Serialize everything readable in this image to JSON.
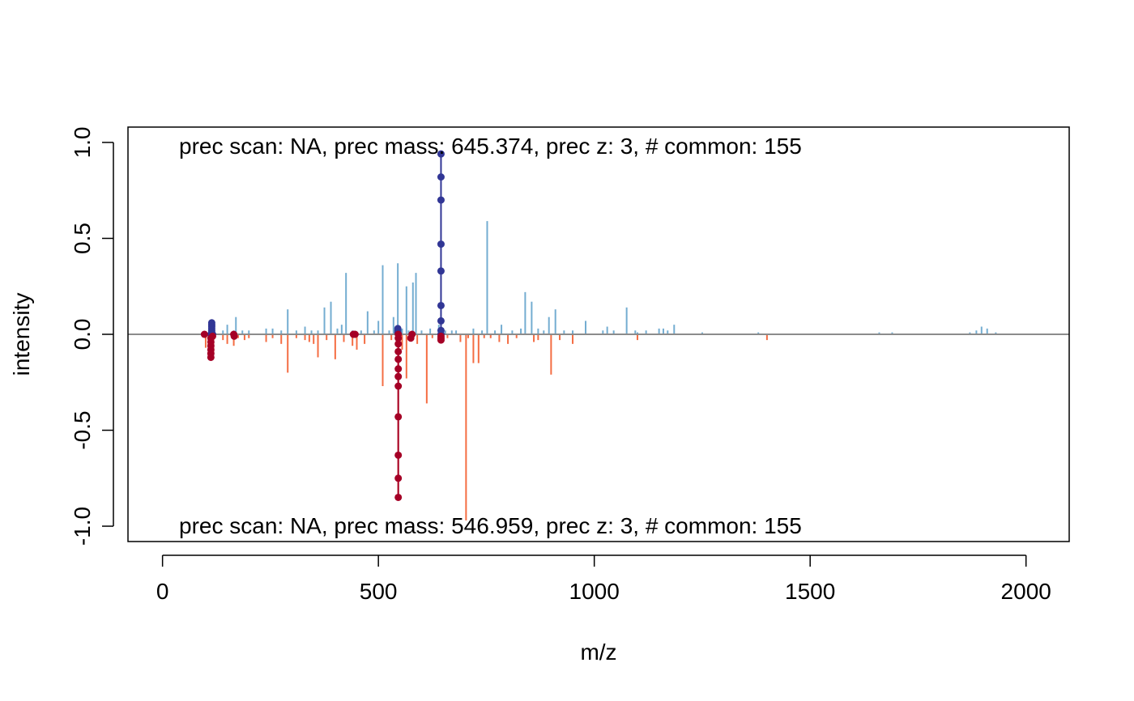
{
  "chart_data": {
    "type": "spectrum-mirror",
    "xlabel": "m/z",
    "ylabel": "intensity",
    "xlim": [
      -80,
      2100
    ],
    "ylim": [
      -1.08,
      1.08
    ],
    "x_ticks": [
      0,
      500,
      1000,
      1500,
      2000
    ],
    "x_tick_labels": [
      "0",
      "500",
      "1000",
      "1500",
      "2000"
    ],
    "y_ticks": [
      1.0,
      0.5,
      0.0,
      -0.5,
      -1.0
    ],
    "y_tick_labels": [
      "1.0",
      "0.5",
      "0.0",
      "-0.5",
      "-1.0"
    ],
    "top_label": "prec scan: NA, prec mass: 645.374, prec z: 3, # common: 155",
    "bottom_label": "prec scan: NA, prec mass: 546.959, prec z: 3, # common: 155",
    "colors": {
      "top_peaks": "#74add1",
      "bottom_peaks": "#f46d43",
      "top_points": "#313695",
      "bottom_points": "#a50026",
      "baseline": "#8c8c8c",
      "axis": "#000000"
    },
    "top_spectrum": {
      "peaks": [
        [
          110,
          0.03
        ],
        [
          114,
          0.05
        ],
        [
          118,
          0.04
        ],
        [
          140,
          0.02
        ],
        [
          150,
          0.05
        ],
        [
          165,
          0.02
        ],
        [
          170,
          0.09
        ],
        [
          185,
          0.02
        ],
        [
          200,
          0.02
        ],
        [
          240,
          0.03
        ],
        [
          255,
          0.03
        ],
        [
          275,
          0.02
        ],
        [
          290,
          0.13
        ],
        [
          310,
          0.02
        ],
        [
          330,
          0.04
        ],
        [
          345,
          0.02
        ],
        [
          360,
          0.02
        ],
        [
          375,
          0.14
        ],
        [
          390,
          0.17
        ],
        [
          405,
          0.03
        ],
        [
          415,
          0.05
        ],
        [
          425,
          0.32
        ],
        [
          440,
          0.02
        ],
        [
          460,
          0.02
        ],
        [
          475,
          0.12
        ],
        [
          490,
          0.02
        ],
        [
          500,
          0.07
        ],
        [
          510,
          0.36
        ],
        [
          525,
          0.02
        ],
        [
          535,
          0.09
        ],
        [
          545,
          0.37
        ],
        [
          555,
          0.03
        ],
        [
          565,
          0.25
        ],
        [
          570,
          0.02
        ],
        [
          580,
          0.27
        ],
        [
          587,
          0.32
        ],
        [
          600,
          0.02
        ],
        [
          620,
          0.03
        ],
        [
          640,
          0.05
        ],
        [
          655,
          0.02
        ],
        [
          670,
          0.02
        ],
        [
          680,
          0.02
        ],
        [
          720,
          0.03
        ],
        [
          740,
          0.02
        ],
        [
          752,
          0.59
        ],
        [
          770,
          0.02
        ],
        [
          785,
          0.05
        ],
        [
          810,
          0.02
        ],
        [
          830,
          0.03
        ],
        [
          840,
          0.22
        ],
        [
          855,
          0.17
        ],
        [
          870,
          0.03
        ],
        [
          883,
          0.02
        ],
        [
          895,
          0.09
        ],
        [
          910,
          0.13
        ],
        [
          930,
          0.02
        ],
        [
          950,
          0.02
        ],
        [
          980,
          0.07
        ],
        [
          1020,
          0.02
        ],
        [
          1030,
          0.04
        ],
        [
          1045,
          0.02
        ],
        [
          1075,
          0.14
        ],
        [
          1095,
          0.02
        ],
        [
          1100,
          0.01
        ],
        [
          1120,
          0.02
        ],
        [
          1150,
          0.03
        ],
        [
          1160,
          0.03
        ],
        [
          1170,
          0.02
        ],
        [
          1185,
          0.05
        ],
        [
          1250,
          0.01
        ],
        [
          1380,
          0.01
        ],
        [
          1660,
          0.01
        ],
        [
          1690,
          0.01
        ],
        [
          1870,
          0.01
        ],
        [
          1885,
          0.02
        ],
        [
          1897,
          0.04
        ],
        [
          1910,
          0.03
        ],
        [
          1930,
          0.01
        ]
      ],
      "precursor_x": 645,
      "precursor_points": [
        0.94,
        0.82,
        0.7,
        0.47,
        0.33,
        0.15,
        0.07,
        0.02,
        0.0
      ],
      "cluster_points": [
        [
          114,
          0.06
        ],
        [
          114,
          0.05
        ],
        [
          114,
          0.04
        ],
        [
          114,
          0.03
        ],
        [
          114,
          0.02
        ],
        [
          114,
          0.01
        ],
        [
          112,
          0.0
        ],
        [
          116,
          0.0
        ],
        [
          545,
          0.03
        ],
        [
          545,
          0.02
        ],
        [
          545,
          0.01
        ]
      ]
    },
    "bottom_spectrum": {
      "peaks": [
        [
          100,
          0.07
        ],
        [
          110,
          0.05
        ],
        [
          114,
          0.12
        ],
        [
          118,
          0.1
        ],
        [
          140,
          0.03
        ],
        [
          150,
          0.05
        ],
        [
          165,
          0.06
        ],
        [
          175,
          0.02
        ],
        [
          190,
          0.03
        ],
        [
          200,
          0.02
        ],
        [
          240,
          0.04
        ],
        [
          255,
          0.02
        ],
        [
          275,
          0.05
        ],
        [
          290,
          0.2
        ],
        [
          310,
          0.02
        ],
        [
          330,
          0.03
        ],
        [
          340,
          0.04
        ],
        [
          350,
          0.05
        ],
        [
          360,
          0.12
        ],
        [
          380,
          0.03
        ],
        [
          400,
          0.13
        ],
        [
          420,
          0.04
        ],
        [
          440,
          0.06
        ],
        [
          450,
          0.08
        ],
        [
          468,
          0.05
        ],
        [
          510,
          0.27
        ],
        [
          530,
          0.03
        ],
        [
          546,
          0.85
        ],
        [
          555,
          0.08
        ],
        [
          565,
          0.23
        ],
        [
          575,
          0.02
        ],
        [
          590,
          0.05
        ],
        [
          612,
          0.36
        ],
        [
          625,
          0.02
        ],
        [
          650,
          0.02
        ],
        [
          660,
          0.02
        ],
        [
          690,
          0.04
        ],
        [
          703,
          0.97
        ],
        [
          708,
          0.02
        ],
        [
          720,
          0.15
        ],
        [
          732,
          0.15
        ],
        [
          745,
          0.02
        ],
        [
          760,
          0.02
        ],
        [
          780,
          0.04
        ],
        [
          800,
          0.05
        ],
        [
          820,
          0.02
        ],
        [
          860,
          0.04
        ],
        [
          870,
          0.03
        ],
        [
          900,
          0.21
        ],
        [
          920,
          0.03
        ],
        [
          950,
          0.05
        ],
        [
          1100,
          0.03
        ],
        [
          1400,
          0.03
        ]
      ],
      "precursor_x": 546,
      "precursor_points": [
        -0.85,
        -0.75,
        -0.63,
        -0.43,
        -0.27,
        -0.22,
        -0.18,
        -0.13,
        -0.09,
        -0.05,
        -0.02,
        0.0
      ],
      "cluster_points": [
        [
          97,
          0.0
        ],
        [
          112,
          -0.12
        ],
        [
          112,
          -0.1
        ],
        [
          112,
          -0.08
        ],
        [
          112,
          -0.06
        ],
        [
          112,
          -0.04
        ],
        [
          112,
          -0.02
        ],
        [
          116,
          -0.01
        ],
        [
          165,
          0.0
        ],
        [
          166,
          -0.01
        ],
        [
          442,
          0.0
        ],
        [
          446,
          0.0
        ],
        [
          575,
          -0.02
        ],
        [
          578,
          0.0
        ],
        [
          645,
          -0.03
        ],
        [
          645,
          -0.02
        ],
        [
          645,
          -0.01
        ]
      ]
    }
  }
}
